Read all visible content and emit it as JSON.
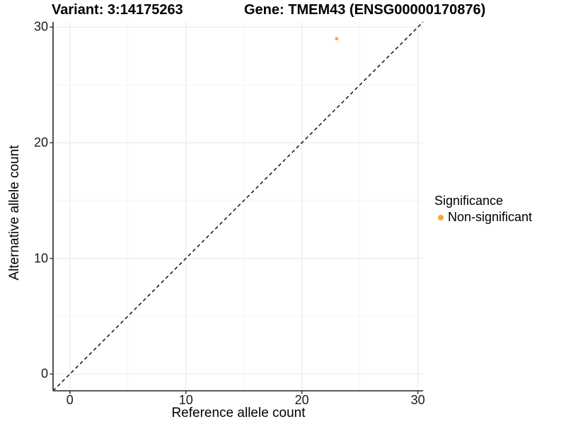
{
  "chart_data": {
    "type": "scatter",
    "titles": {
      "left": "Variant: 3:14175263",
      "right": "Gene: TMEM43 (ENSG00000170876)"
    },
    "xlabel": "Reference allele count",
    "ylabel": "Alternative allele count",
    "xlim": [
      -1.45,
      30.45
    ],
    "ylim": [
      -1.45,
      30.45
    ],
    "x_ticks": [
      0,
      10,
      20,
      30
    ],
    "y_ticks": [
      0,
      10,
      20,
      30
    ],
    "x_minor_ticks": [
      5,
      15,
      25
    ],
    "y_minor_ticks": [
      5,
      15,
      25
    ],
    "grid": true,
    "points": [
      {
        "x": 23,
        "y": 29,
        "significance": "Non-significant"
      }
    ],
    "reference_line": {
      "type": "identity",
      "style": "dashed",
      "color": "#000000"
    },
    "legend": {
      "title": "Significance",
      "position": "right",
      "items": [
        {
          "label": "Non-significant",
          "color": "#FAA43C",
          "marker": "circle"
        }
      ]
    },
    "colors": {
      "point": "#FAA43C",
      "grid_major": "#EBEBEB",
      "grid_minor": "#F4F4F4",
      "axis_line": "#404040",
      "tick_mark": "#333333",
      "text": "#000000",
      "background": "#FFFFFF"
    }
  }
}
